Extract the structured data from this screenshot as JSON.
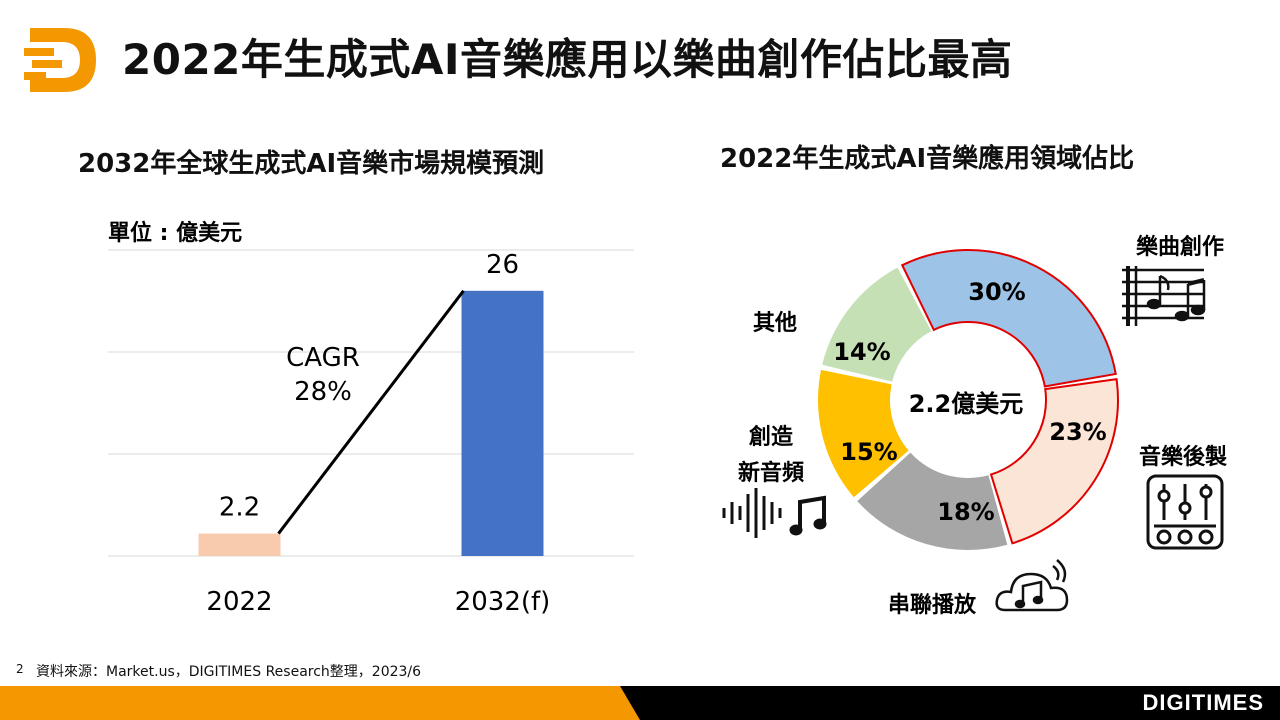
{
  "header": {
    "title": "2022年生成式AI音樂應用以樂曲創作佔比最高"
  },
  "colors": {
    "logo_orange": "#F39800",
    "bar_2022": "#F8CBAD",
    "bar_2032": "#4472C4",
    "composition": "#9DC3E6",
    "post_production": "#FBE5D6",
    "streaming": "#A6A6A6",
    "new_audio": "#FFC000",
    "other": "#C5E0B4",
    "highlight_border": "#E00000",
    "footer_orange": "#F39800",
    "footer_black": "#000000"
  },
  "chart_data": [
    {
      "type": "bar",
      "title": "2032年全球生成式AI音樂市場規模預測",
      "unit_label": "單位 : 億美元",
      "categories": [
        "2022",
        "2032(f)"
      ],
      "values": [
        2.2,
        26
      ],
      "value_labels": [
        "2.2",
        "26"
      ],
      "ylim": [
        0,
        30
      ],
      "grid": true,
      "annotation": {
        "line1": "CAGR",
        "line2": "28%"
      }
    },
    {
      "type": "pie",
      "title": "2022年生成式AI音樂應用領域佔比",
      "center_label": "2.2億美元",
      "slices": [
        {
          "key": "composition",
          "label": "樂曲創作",
          "value": 30,
          "display": "30%",
          "icon": "sheet-music-icon",
          "highlight": true
        },
        {
          "key": "post_production",
          "label": "音樂後製",
          "value": 23,
          "display": "23%",
          "icon": "mixer-sliders-icon",
          "highlight": true
        },
        {
          "key": "streaming",
          "label": "串聯播放",
          "value": 18,
          "display": "18%",
          "icon": "cloud-music-icon",
          "highlight": false
        },
        {
          "key": "new_audio",
          "label": [
            "創造",
            "新音頻"
          ],
          "value": 15,
          "display": "15%",
          "icon": "soundwave-music-icon",
          "highlight": false
        },
        {
          "key": "other",
          "label": "其他",
          "value": 14,
          "display": "14%",
          "icon": "",
          "highlight": false
        }
      ]
    }
  ],
  "footer": {
    "page_number": "2",
    "source": "資料來源：Market.us，DIGITIMES Research整理，2023/6",
    "brand": "DIGITIMES"
  }
}
